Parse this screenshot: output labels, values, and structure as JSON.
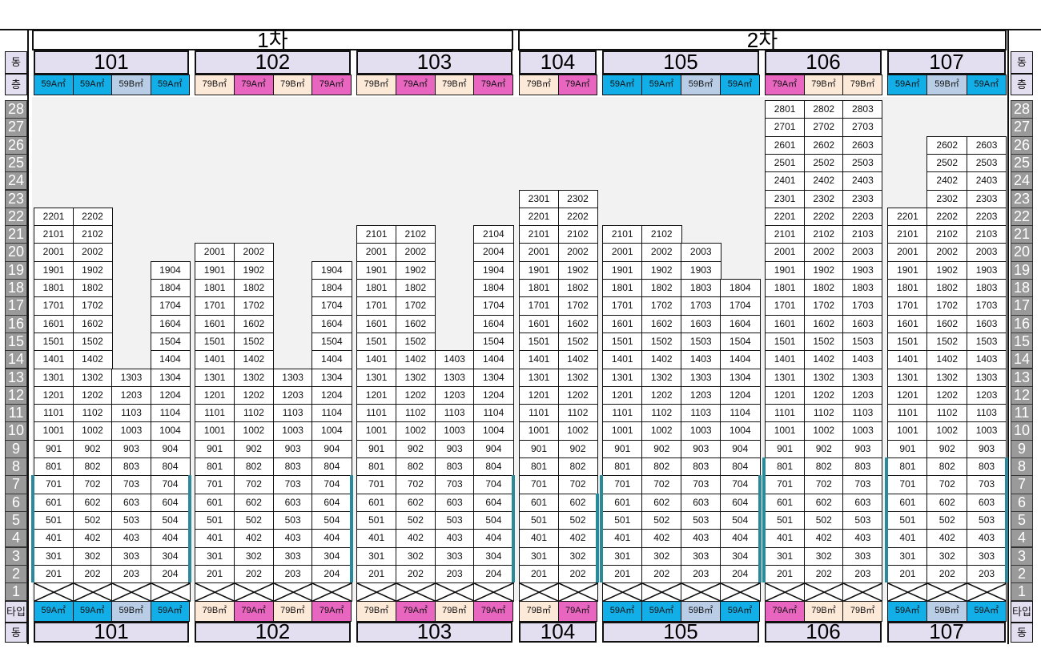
{
  "side_labels": {
    "dong": "동",
    "floor": "층",
    "type": "타입"
  },
  "phases": [
    {
      "label": "1차"
    },
    {
      "label": "2차"
    }
  ],
  "floors": [
    "28",
    "27",
    "26",
    "25",
    "24",
    "23",
    "22",
    "21",
    "20",
    "19",
    "18",
    "17",
    "16",
    "15",
    "14",
    "13",
    "12",
    "11",
    "10",
    "9",
    "8",
    "7",
    "6",
    "5",
    "4",
    "3",
    "2",
    "1"
  ],
  "type_colors": {
    "59A": "#12aee8",
    "59B": "#b9cde6",
    "79A": "#e866c0",
    "79B": "#fde9d8"
  },
  "buildings": [
    {
      "name": "101",
      "phase": 0,
      "types": [
        "59A㎡",
        "59A㎡",
        "59B㎡",
        "59A㎡"
      ],
      "columns": [
        {
          "unit": "01",
          "floors": [
            2,
            22
          ]
        },
        {
          "unit": "02",
          "floors": [
            2,
            22
          ]
        },
        {
          "unit": "03",
          "floors": [
            2,
            13
          ]
        },
        {
          "unit": "04",
          "floors": [
            2,
            19
          ]
        }
      ],
      "highlight": {
        "left": [
          2,
          7
        ],
        "right": [
          2,
          7
        ]
      }
    },
    {
      "name": "102",
      "phase": 0,
      "types": [
        "79B㎡",
        "79A㎡",
        "79B㎡",
        "79A㎡"
      ],
      "columns": [
        {
          "unit": "01",
          "floors": [
            2,
            20
          ]
        },
        {
          "unit": "02",
          "floors": [
            2,
            20
          ]
        },
        {
          "unit": "03",
          "floors": [
            2,
            13
          ]
        },
        {
          "unit": "04",
          "floors": [
            2,
            19
          ]
        }
      ],
      "highlight": {
        "right": [
          2,
          7
        ]
      }
    },
    {
      "name": "103",
      "phase": 0,
      "types": [
        "79B㎡",
        "79A㎡",
        "79B㎡",
        "79A㎡"
      ],
      "columns": [
        {
          "unit": "01",
          "floors": [
            2,
            21
          ]
        },
        {
          "unit": "02",
          "floors": [
            2,
            21
          ]
        },
        {
          "unit": "03",
          "floors": [
            2,
            14
          ]
        },
        {
          "unit": "04",
          "floors": [
            2,
            21
          ]
        }
      ],
      "highlight": {
        "right": [
          2,
          7
        ]
      }
    },
    {
      "name": "104",
      "phase": 1,
      "types": [
        "79B㎡",
        "79A㎡"
      ],
      "columns": [
        {
          "unit": "01",
          "floors": [
            2,
            23
          ]
        },
        {
          "unit": "02",
          "floors": [
            2,
            23
          ]
        }
      ],
      "highlight": {
        "right": [
          2,
          6
        ]
      }
    },
    {
      "name": "105",
      "phase": 1,
      "types": [
        "59A㎡",
        "59A㎡",
        "59B㎡",
        "59A㎡"
      ],
      "columns": [
        {
          "unit": "01",
          "floors": [
            2,
            21
          ]
        },
        {
          "unit": "02",
          "floors": [
            2,
            21
          ]
        },
        {
          "unit": "03",
          "floors": [
            2,
            20
          ]
        },
        {
          "unit": "04",
          "floors": [
            2,
            18
          ]
        }
      ],
      "highlight": {
        "left": [
          2,
          7
        ],
        "right": [
          2,
          7
        ]
      }
    },
    {
      "name": "106",
      "phase": 1,
      "types": [
        "79A㎡",
        "79B㎡",
        "79B㎡"
      ],
      "columns": [
        {
          "unit": "01",
          "floors": [
            2,
            28
          ]
        },
        {
          "unit": "02",
          "floors": [
            2,
            28
          ]
        },
        {
          "unit": "03",
          "floors": [
            2,
            28
          ]
        }
      ],
      "highlight": {
        "left": [
          2,
          8
        ]
      }
    },
    {
      "name": "107",
      "phase": 1,
      "types": [
        "59A㎡",
        "59B㎡",
        "59A㎡"
      ],
      "columns": [
        {
          "unit": "01",
          "floors": [
            2,
            22
          ]
        },
        {
          "unit": "02",
          "floors": [
            2,
            26
          ]
        },
        {
          "unit": "03",
          "floors": [
            2,
            26
          ]
        }
      ],
      "highlight": {
        "left": [
          2,
          8
        ],
        "right": [
          2,
          8
        ]
      }
    }
  ]
}
